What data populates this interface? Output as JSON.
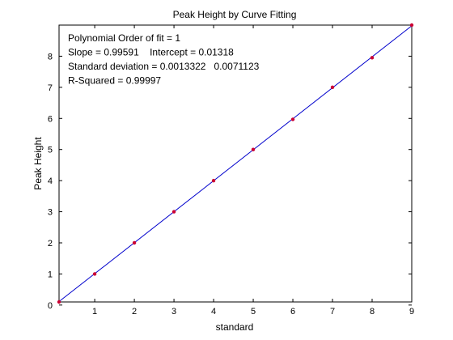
{
  "chart_data": {
    "type": "scatter",
    "title": "Peak Height by Curve Fitting",
    "xlabel": "standard",
    "ylabel": "Peak Height",
    "xlim": [
      0.1,
      9
    ],
    "ylim": [
      0.1,
      9
    ],
    "x_ticks": [
      1,
      2,
      3,
      4,
      5,
      6,
      7,
      8,
      9
    ],
    "y_ticks": [
      0,
      1,
      2,
      3,
      4,
      5,
      6,
      7,
      8
    ],
    "grid": false,
    "points": {
      "x": [
        0.1,
        1,
        2,
        3,
        4,
        5,
        6,
        7,
        8,
        9
      ],
      "y": [
        0.1,
        1.0,
        2.0,
        3.0,
        4.0,
        5.0,
        5.97,
        7.0,
        7.95,
        9.0
      ],
      "color": "#cc0033"
    },
    "fit_line": {
      "slope": 0.99591,
      "intercept": 0.01318,
      "color": "#0000cc"
    },
    "annotations": [
      "Polynomial Order of fit = 1",
      "Slope = 0.99591    Intercept = 0.01318",
      "Standard deviation = 0.0013322   0.0071123",
      "R-Squared = 0.99997"
    ]
  }
}
